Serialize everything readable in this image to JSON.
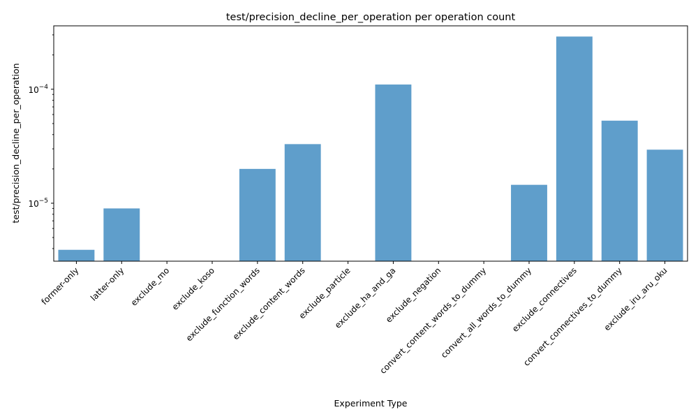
{
  "chart_data": {
    "type": "bar",
    "title": "test/precision_decline_per_operation per operation count",
    "xlabel": "Experiment Type",
    "ylabel": "test/precision_decline_per_operation",
    "yscale": "log",
    "ylim": [
      3.1e-06,
      0.00036
    ],
    "yticks": [
      {
        "value": 1e-05,
        "base": "10",
        "exp": "−5"
      },
      {
        "value": 0.0001,
        "base": "10",
        "exp": "−4"
      }
    ],
    "categories": [
      "former-only",
      "latter-only",
      "exclude_mo",
      "exclude_koso",
      "exclude_function_words",
      "exclude_content_words",
      "exclude_particle",
      "exclude_ha_and_ga",
      "exclude_negation",
      "convert_content_words_to_dummy",
      "convert_all_words_to_dummy",
      "exclude_connectives",
      "convert_connectives_to_dummy",
      "exclude_iru_aru_oku"
    ],
    "values": [
      3.9e-06,
      9e-06,
      null,
      null,
      2e-05,
      3.3e-05,
      null,
      0.00011,
      null,
      null,
      1.45e-05,
      0.00029,
      5.3e-05,
      2.95e-05
    ],
    "bar_color": "#5f9ecb",
    "grid": false,
    "legend": "none"
  }
}
